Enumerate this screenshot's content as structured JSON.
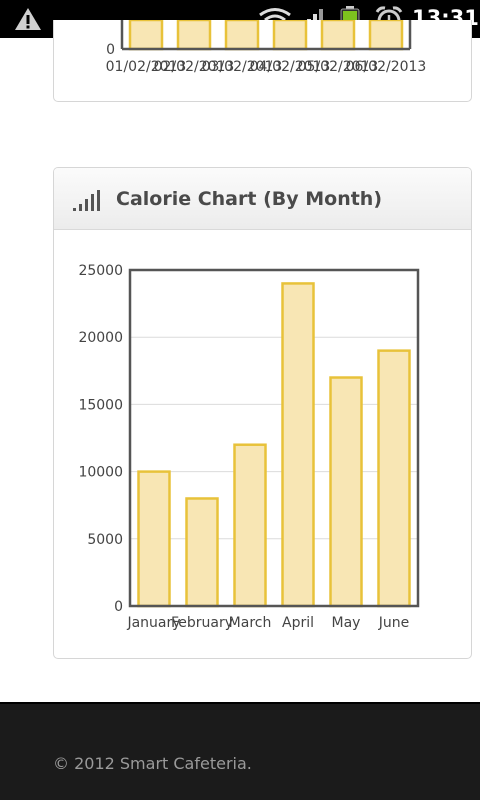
{
  "status_bar": {
    "time": "13:31",
    "icons": [
      "warning-icon",
      "wifi-icon",
      "signal-icon",
      "battery-icon",
      "alarm-icon"
    ]
  },
  "top_chart": {
    "y_tick": "0",
    "x_labels": [
      "01/02/2013",
      "02/02/2013",
      "03/02/2013",
      "04/02/2013",
      "05/02/2013",
      "06/02/2013"
    ]
  },
  "calorie_card": {
    "title": "Calorie Chart (By Month)",
    "icon": "signal-bars-icon"
  },
  "chart_data": {
    "type": "bar",
    "title": "Calorie Chart (By Month)",
    "categories": [
      "January",
      "February",
      "March",
      "April",
      "May",
      "June"
    ],
    "values": [
      10000,
      8000,
      12000,
      24000,
      17000,
      19000
    ],
    "yticks": [
      "0",
      "5000",
      "10000",
      "15000",
      "20000",
      "25000"
    ],
    "ylim": [
      0,
      25000
    ],
    "grid": true,
    "bar_fill": "#f8e6b4",
    "bar_stroke": "#e8c23a"
  },
  "footer": {
    "copyright": "© 2012 Smart Cafeteria."
  }
}
